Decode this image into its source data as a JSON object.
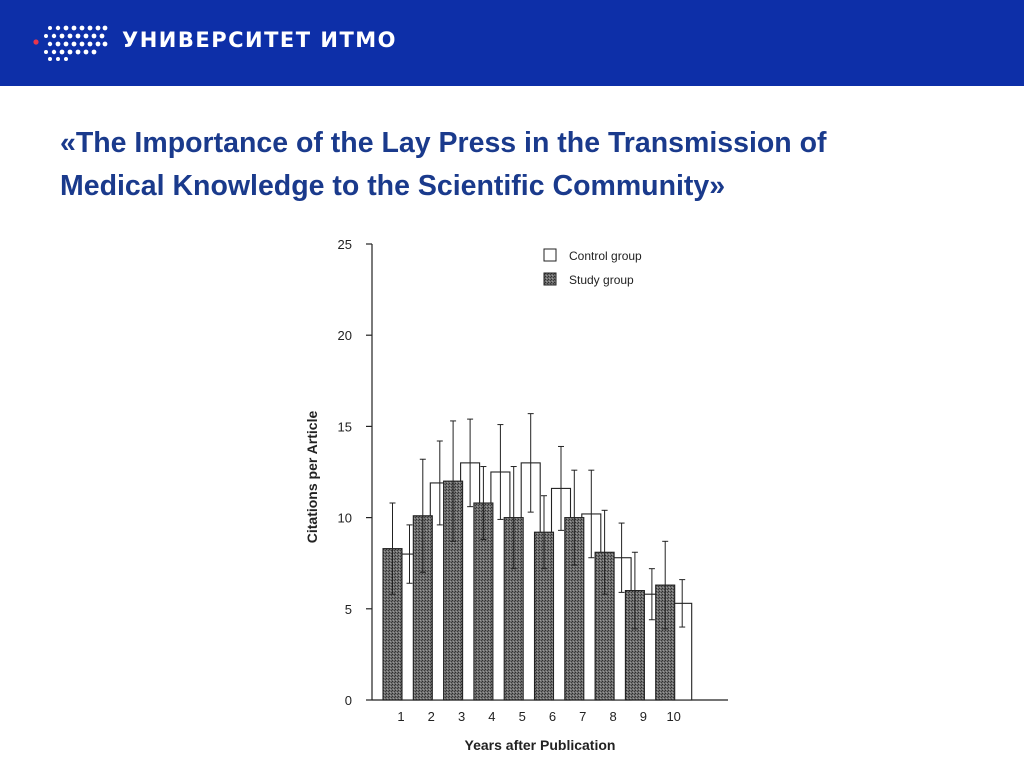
{
  "header": {
    "brand": "УНИВЕРСИТЕТ ИТМО",
    "background_color": "#0d2fa8",
    "logo_icon": "itmo-dots-logo-icon"
  },
  "slide": {
    "title_line1": "«The Importance of the Lay Press in the Transmission of",
    "title_line2": "Medical Knowledge to the Scientific Community»",
    "title_color": "#1a3a8c"
  },
  "chart_data": {
    "type": "bar",
    "xlabel": "Years after Publication",
    "ylabel": "Citations per Article",
    "ylim": [
      0,
      25
    ],
    "yticks": [
      0,
      5,
      10,
      15,
      20,
      25
    ],
    "categories": [
      "1",
      "2",
      "3",
      "4",
      "5",
      "6",
      "7",
      "8",
      "9",
      "10"
    ],
    "legend_position": "top-right",
    "grid": false,
    "series": [
      {
        "name": "Study group",
        "style": "hatched-dark",
        "values": [
          8.3,
          10.1,
          12.0,
          10.8,
          10.0,
          9.2,
          10.0,
          8.1,
          6.0,
          6.3
        ],
        "error": [
          2.5,
          3.1,
          3.3,
          2.0,
          2.8,
          2.0,
          2.6,
          2.3,
          2.1,
          2.4
        ]
      },
      {
        "name": "Control group",
        "style": "open",
        "values": [
          8.0,
          11.9,
          13.0,
          12.5,
          13.0,
          11.6,
          10.2,
          7.8,
          5.8,
          5.3
        ],
        "error": [
          1.6,
          2.3,
          2.4,
          2.6,
          2.7,
          2.3,
          2.4,
          1.9,
          1.4,
          1.3
        ]
      }
    ]
  }
}
